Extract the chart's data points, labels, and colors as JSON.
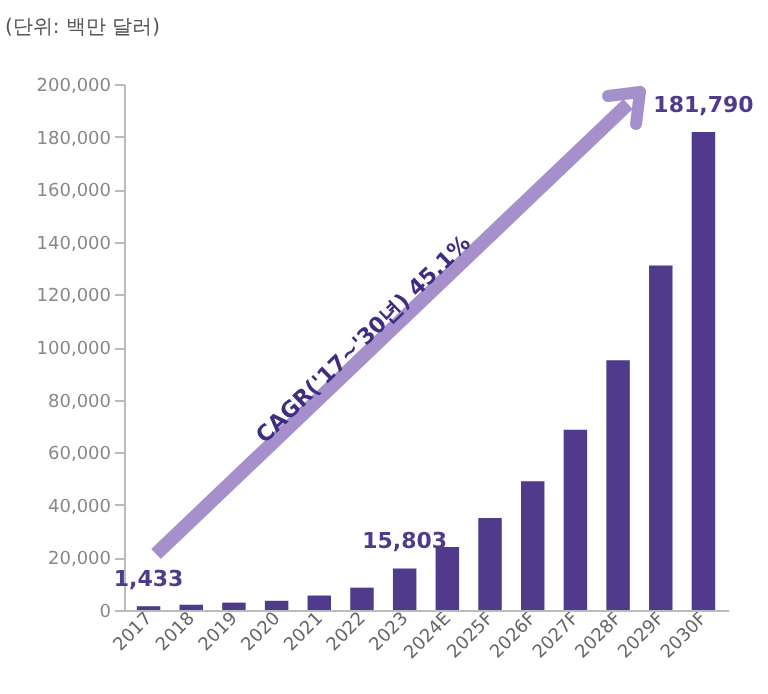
{
  "chart_data": {
    "type": "bar",
    "ylabel": "(단위: 백만 달러)",
    "categories": [
      "2017",
      "2018",
      "2019",
      "2020",
      "2021",
      "2022",
      "2023",
      "2024E",
      "2025F",
      "2026F",
      "2027F",
      "2028F",
      "2029F",
      "2030F"
    ],
    "values": [
      1433,
      2000,
      2800,
      3500,
      5500,
      8500,
      15803,
      24000,
      35000,
      49000,
      68500,
      95000,
      131000,
      181790
    ],
    "value_labels": [
      "1,433",
      null,
      null,
      null,
      null,
      null,
      "15,803",
      null,
      null,
      null,
      null,
      null,
      null,
      "181,790"
    ],
    "color": "#4f3a8c",
    "ylim": [
      0,
      200000
    ],
    "yticks": [
      {
        "value": 0,
        "label": "0"
      },
      {
        "value": 20000,
        "label": "20,000"
      },
      {
        "value": 40000,
        "label": "40,000"
      },
      {
        "value": 60000,
        "label": "60,000"
      },
      {
        "value": 80000,
        "label": "80,000"
      },
      {
        "value": 100000,
        "label": "100,000"
      },
      {
        "value": 120000,
        "label": "120,000"
      },
      {
        "value": 140000,
        "label": "140,000"
      },
      {
        "value": 160000,
        "label": "160,000"
      },
      {
        "value": 180000,
        "label": "180,000"
      },
      {
        "value": 200000,
        "label": "200,000"
      }
    ],
    "annotations": [
      "CAGR('17~'30년) 45.1%"
    ],
    "grid": false
  }
}
